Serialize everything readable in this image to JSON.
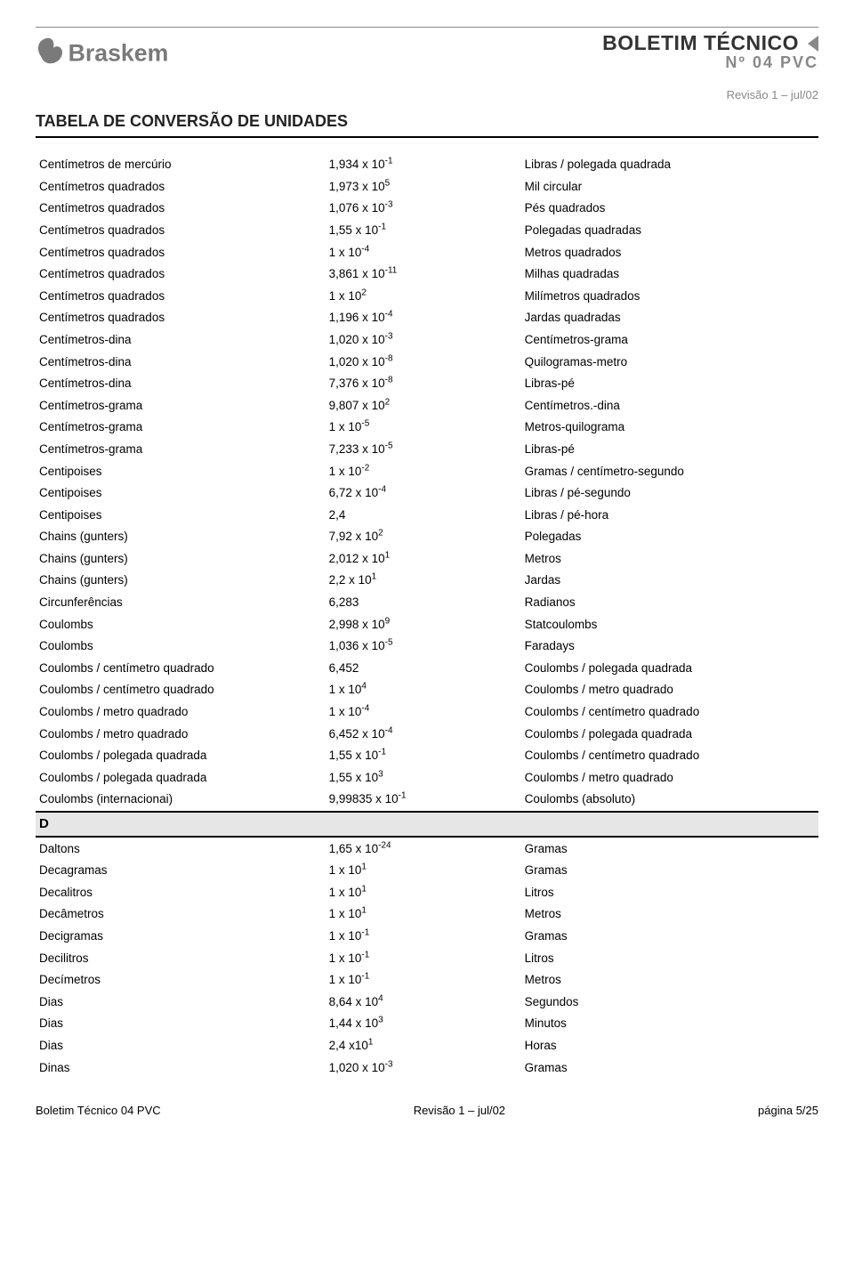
{
  "header": {
    "logo_text": "Braskem",
    "doc_title": "BOLETIM TÉCNICO",
    "doc_sub": "Nº 04 PVC",
    "revision": "Revisão 1 – jul/02"
  },
  "page_title": "TABELA DE CONVERSÃO DE UNIDADES",
  "section_letter": "D",
  "colors": {
    "text": "#000000",
    "logo_gray": "#7a7a7a",
    "sub_gray": "#888888",
    "section_bg": "#e6e6e6",
    "rule": "#000000"
  },
  "rows_top": [
    {
      "from": "Centímetros de mercúrio",
      "coef": "1,934 x 10",
      "exp": "-1",
      "to": "Libras / polegada quadrada"
    },
    {
      "from": "Centímetros quadrados",
      "coef": "1,973 x 10",
      "exp": "5",
      "to": "Mil circular"
    },
    {
      "from": "Centímetros quadrados",
      "coef": "1,076 x 10",
      "exp": "-3",
      "to": "Pés quadrados"
    },
    {
      "from": "Centímetros quadrados",
      "coef": "1,55 x 10",
      "exp": "-1",
      "to": "Polegadas quadradas"
    },
    {
      "from": "Centímetros quadrados",
      "coef": "1 x 10",
      "exp": "-4",
      "to": "Metros quadrados"
    },
    {
      "from": "Centímetros quadrados",
      "coef": "3,861 x 10",
      "exp": "-11",
      "to": "Milhas quadradas"
    },
    {
      "from": "Centímetros quadrados",
      "coef": "1 x 10",
      "exp": "2",
      "to": "Milímetros quadrados"
    },
    {
      "from": "Centímetros quadrados",
      "coef": "1,196 x 10",
      "exp": "-4",
      "to": "Jardas quadradas"
    },
    {
      "from": "Centímetros-dina",
      "coef": "1,020 x 10",
      "exp": "-3",
      "to": "Centímetros-grama"
    },
    {
      "from": "Centímetros-dina",
      "coef": "1,020 x 10",
      "exp": "-8",
      "to": "Quilogramas-metro"
    },
    {
      "from": "Centímetros-dina",
      "coef": "7,376 x 10",
      "exp": "-8",
      "to": "Libras-pé"
    },
    {
      "from": "Centímetros-grama",
      "coef": "9,807 x 10",
      "exp": "2",
      "to": "Centímetros.-dina"
    },
    {
      "from": "Centímetros-grama",
      "coef": "1 x 10",
      "exp": "-5",
      "to": "Metros-quilograma"
    },
    {
      "from": "Centímetros-grama",
      "coef": "7,233 x 10",
      "exp": "-5",
      "to": "Libras-pé"
    },
    {
      "from": "Centipoises",
      "coef": "1 x 10",
      "exp": "-2",
      "to": "Gramas / centímetro-segundo"
    },
    {
      "from": "Centipoises",
      "coef": "6,72 x 10",
      "exp": "-4",
      "to": "Libras / pé-segundo"
    },
    {
      "from": "Centipoises",
      "coef": "2,4",
      "exp": "",
      "to": "Libras / pé-hora"
    },
    {
      "from": "Chains (gunters)",
      "coef": "7,92 x 10",
      "exp": "2",
      "to": "Polegadas"
    },
    {
      "from": "Chains (gunters)",
      "coef": "2,012 x 10",
      "exp": "1",
      "to": "Metros"
    },
    {
      "from": "Chains (gunters)",
      "coef": "2,2 x 10",
      "exp": "1",
      "to": "Jardas"
    },
    {
      "from": "Circunferências",
      "coef": "6,283",
      "exp": "",
      "to": "Radianos"
    },
    {
      "from": "Coulombs",
      "coef": "2,998 x 10",
      "exp": "9",
      "to": "Statcoulombs"
    },
    {
      "from": "Coulombs",
      "coef": "1,036 x 10",
      "exp": "-5",
      "to": "Faradays"
    },
    {
      "from": "Coulombs / centímetro quadrado",
      "coef": "6,452",
      "exp": "",
      "to": "Coulombs / polegada quadrada"
    },
    {
      "from": "Coulombs / centímetro quadrado",
      "coef": "1 x 10",
      "exp": "4",
      "to": "Coulombs / metro quadrado"
    },
    {
      "from": "Coulombs / metro quadrado",
      "coef": "1 x 10",
      "exp": "-4",
      "to": "Coulombs / centímetro quadrado"
    },
    {
      "from": "Coulombs / metro quadrado",
      "coef": "6,452 x 10",
      "exp": "-4",
      "to": "Coulombs / polegada quadrada"
    },
    {
      "from": "Coulombs / polegada quadrada",
      "coef": "1,55 x 10",
      "exp": "-1",
      "to": "Coulombs / centímetro quadrado"
    },
    {
      "from": "Coulombs / polegada quadrada",
      "coef": "1,55 x 10",
      "exp": "3",
      "to": "Coulombs / metro quadrado"
    },
    {
      "from": "Coulombs (internacionai)",
      "coef": "9,99835 x 10",
      "exp": "-1",
      "to": "Coulombs (absoluto)"
    }
  ],
  "rows_d": [
    {
      "from": "Daltons",
      "coef": "1,65 x 10",
      "exp": "-24",
      "to": "Gramas"
    },
    {
      "from": "Decagramas",
      "coef": "1 x 10",
      "exp": "1",
      "to": "Gramas"
    },
    {
      "from": "Decalitros",
      "coef": "1 x 10",
      "exp": "1",
      "to": "Litros"
    },
    {
      "from": "Decâmetros",
      "coef": "1 x 10",
      "exp": "1",
      "to": "Metros"
    },
    {
      "from": "Decigramas",
      "coef": "1 x 10",
      "exp": "-1",
      "to": "Gramas"
    },
    {
      "from": "Decilitros",
      "coef": "1 x 10",
      "exp": "-1",
      "to": "Litros"
    },
    {
      "from": "Decímetros",
      "coef": "1 x 10",
      "exp": "-1",
      "to": "Metros"
    },
    {
      "from": "Dias",
      "coef": "8,64 x 10",
      "exp": "4",
      "to": "Segundos"
    },
    {
      "from": "Dias",
      "coef": "1,44 x 10",
      "exp": "3",
      "to": "Minutos"
    },
    {
      "from": "Dias",
      "coef": "2,4 x10",
      "exp": "1",
      "to": "Horas"
    },
    {
      "from": "Dinas",
      "coef": "1,020 x 10",
      "exp": "-3",
      "to": "Gramas"
    }
  ],
  "footer": {
    "left": "Boletim Técnico 04 PVC",
    "center": "Revisão 1 – jul/02",
    "right": "página 5/25"
  }
}
